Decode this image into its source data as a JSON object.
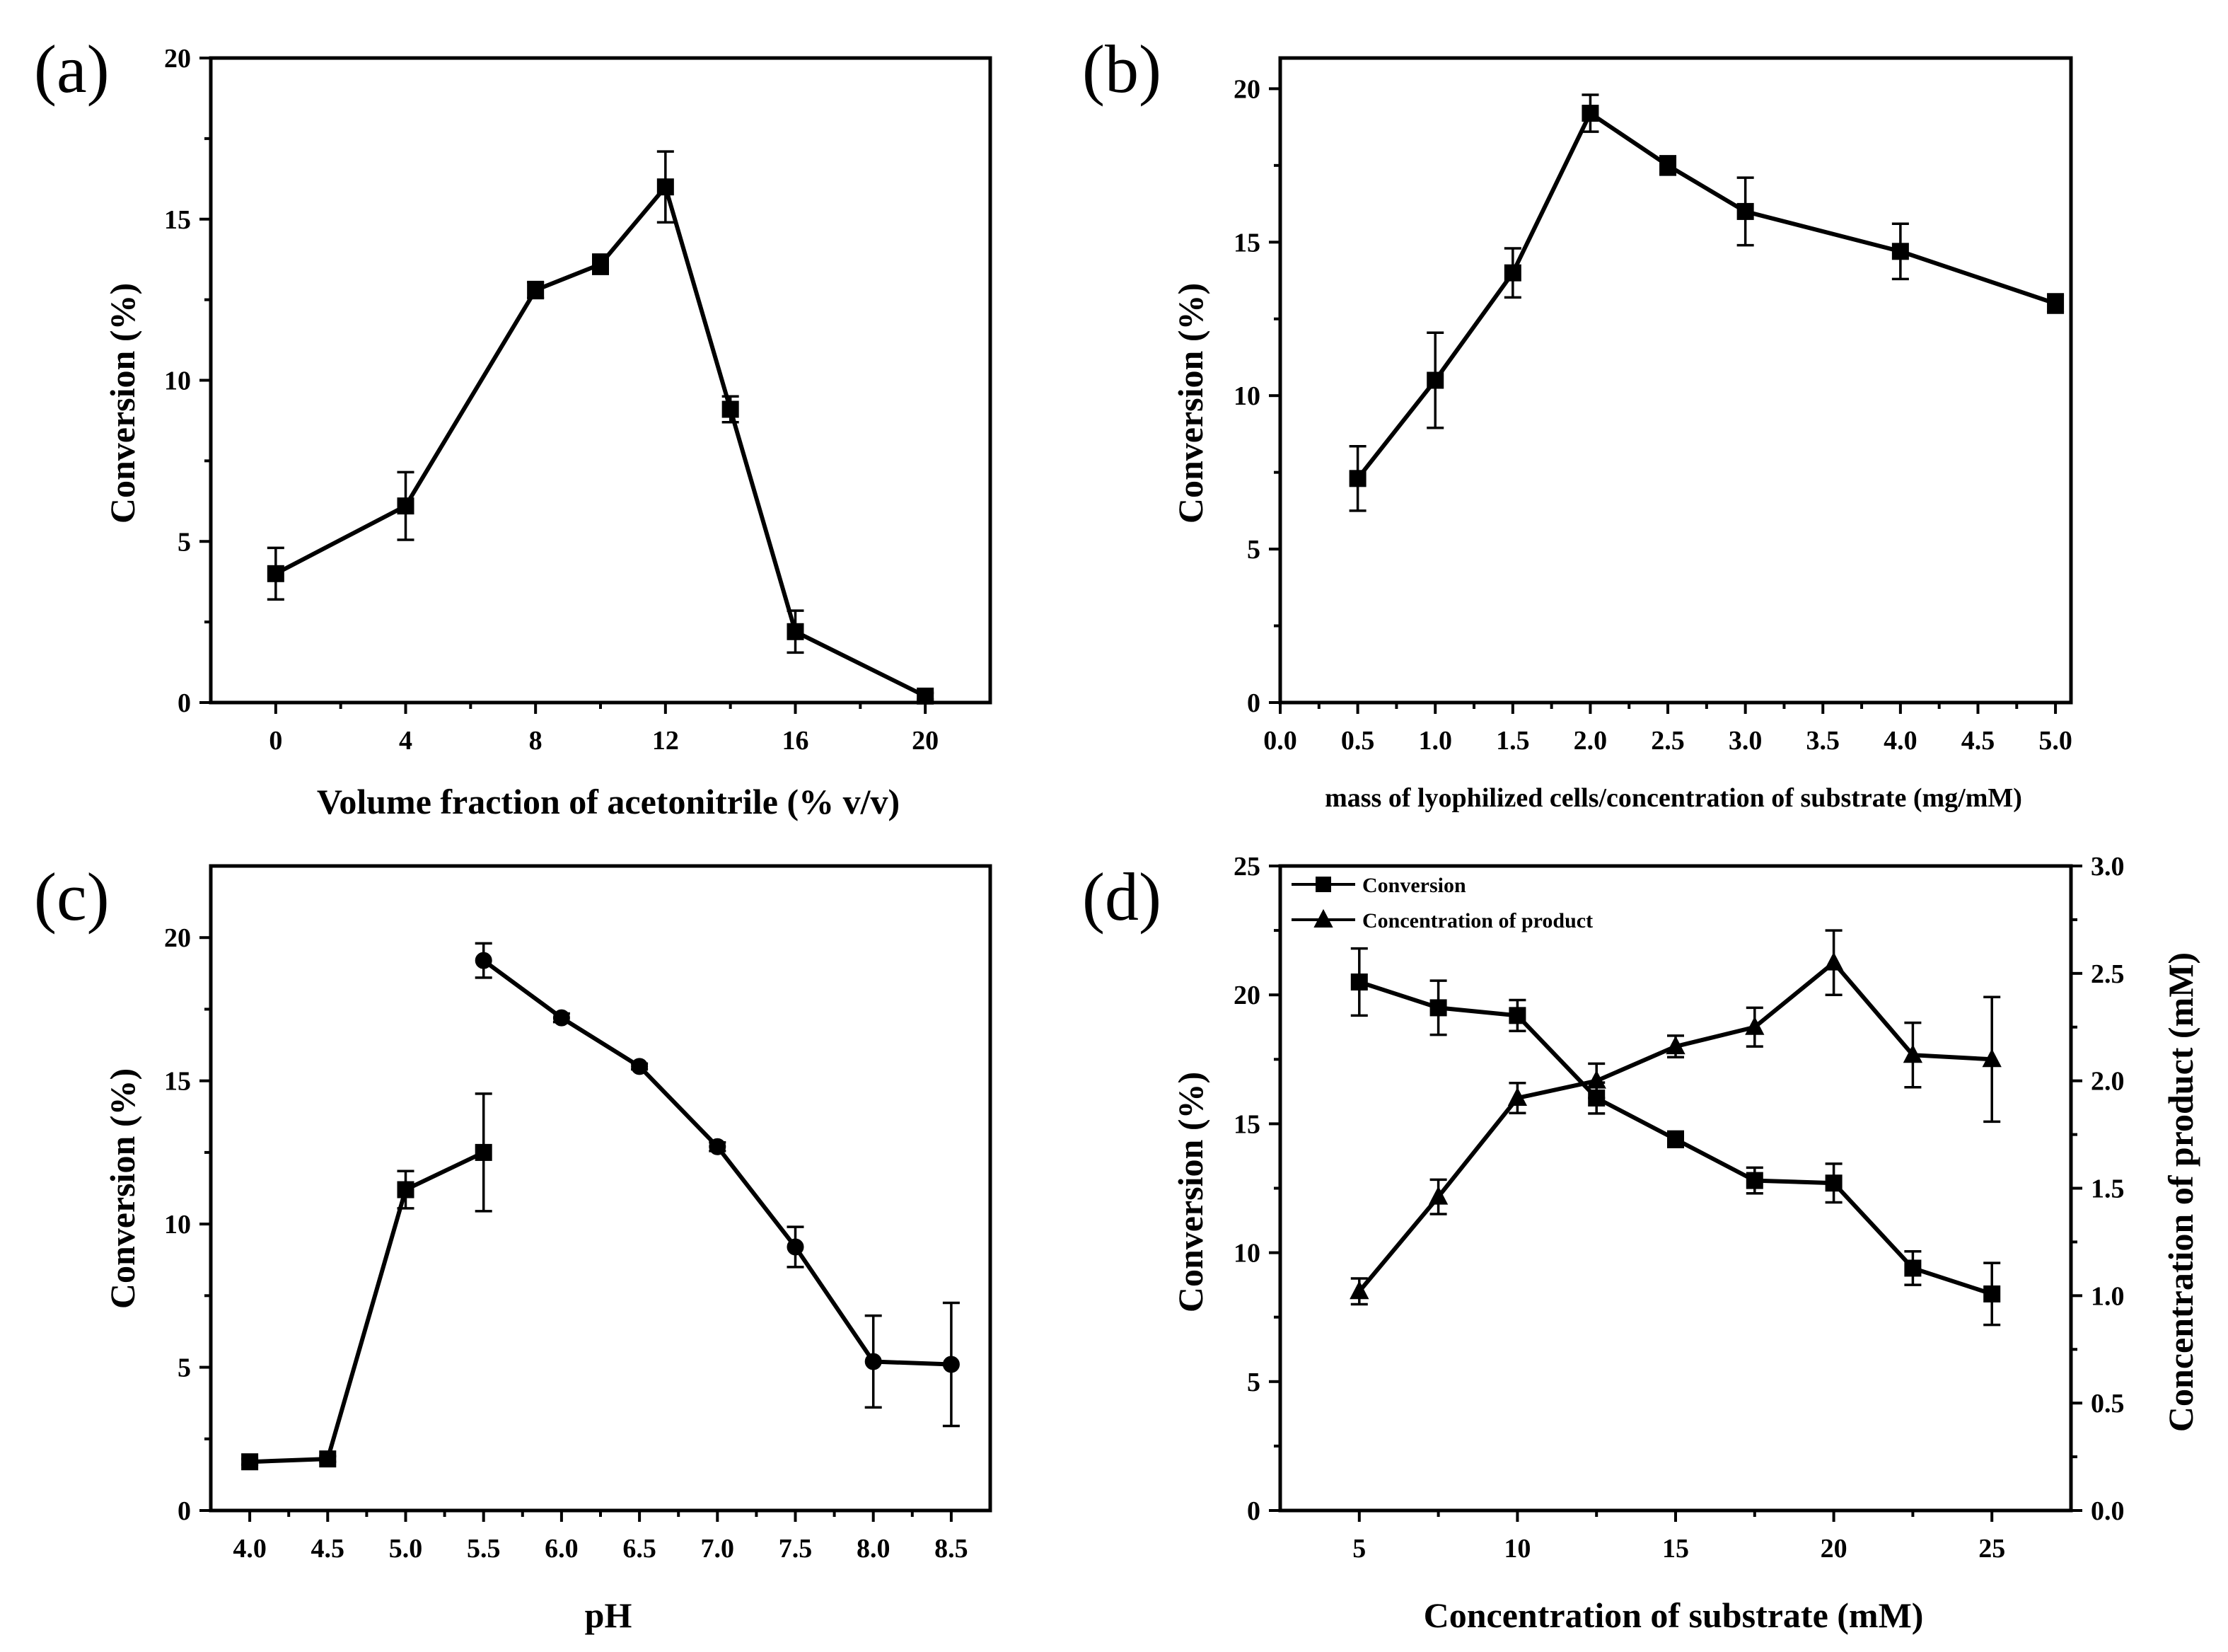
{
  "chart_data": [
    {
      "type": "line",
      "panel_label": "(a)",
      "xlabel": "Volume fraction of acetonitrile (% v/v)",
      "ylabel": "Conversion (%)",
      "xlim": [
        -2,
        22
      ],
      "ylim": [
        0,
        20
      ],
      "x_ticks": [
        0,
        4,
        8,
        12,
        16,
        20
      ],
      "x_tick_labels": [
        "0",
        "4",
        "8",
        "12",
        "16",
        "20"
      ],
      "y_ticks": [
        0,
        5,
        10,
        15,
        20
      ],
      "y_tick_labels": [
        "0",
        "5",
        "10",
        "15",
        "20"
      ],
      "series": [
        {
          "name": "Conversion",
          "marker": "square",
          "axis": "left",
          "x": [
            0,
            4,
            8,
            10,
            12,
            14,
            16,
            20
          ],
          "values": [
            4.0,
            6.1,
            12.8,
            13.6,
            16.0,
            9.1,
            2.2,
            0.2
          ],
          "errors": [
            0.8,
            1.05,
            0.25,
            0.3,
            1.1,
            0.4,
            0.65,
            0.1
          ]
        }
      ]
    },
    {
      "type": "line",
      "panel_label": "(b)",
      "xlabel": "mass of lyophilized cells/concentration of substrate (mg/mM)",
      "ylabel": "Conversion (%)",
      "xlim": [
        0,
        5.1
      ],
      "ylim": [
        0,
        21
      ],
      "x_ticks": [
        0,
        0.5,
        1,
        1.5,
        2,
        2.5,
        3,
        3.5,
        4,
        4.5,
        5
      ],
      "x_tick_labels": [
        "0.0",
        "0.5",
        "1.0",
        "1.5",
        "2.0",
        "2.5",
        "3.0",
        "3.5",
        "4.0",
        "4.5",
        "5.0"
      ],
      "y_ticks": [
        0,
        5,
        10,
        15,
        20
      ],
      "y_tick_labels": [
        "0",
        "5",
        "10",
        "15",
        "20"
      ],
      "series": [
        {
          "name": "Conversion",
          "marker": "square",
          "axis": "left",
          "x": [
            0.5,
            1.0,
            1.5,
            2.0,
            2.5,
            3.0,
            4.0,
            5.0
          ],
          "values": [
            7.3,
            10.5,
            14.0,
            19.2,
            17.5,
            16.0,
            14.7,
            13.0
          ],
          "errors": [
            1.05,
            1.55,
            0.8,
            0.6,
            0.3,
            1.1,
            0.9,
            0.3
          ]
        }
      ]
    },
    {
      "type": "line",
      "panel_label": "(c)",
      "xlabel": "pH",
      "ylabel": "Conversion (%)",
      "xlim": [
        3.75,
        8.75
      ],
      "ylim": [
        0,
        22.5
      ],
      "x_ticks": [
        4.0,
        4.5,
        5.0,
        5.5,
        6.0,
        6.5,
        7.0,
        7.5,
        8.0,
        8.5
      ],
      "x_tick_labels": [
        "4.0",
        "4.5",
        "5.0",
        "5.5",
        "6.0",
        "6.5",
        "7.0",
        "7.5",
        "8.0",
        "8.5"
      ],
      "y_ticks": [
        0,
        5,
        10,
        15,
        20
      ],
      "y_tick_labels": [
        "0",
        "5",
        "10",
        "15",
        "20"
      ],
      "series": [
        {
          "name": "Conversion (squares)",
          "marker": "square",
          "axis": "left",
          "x": [
            4.0,
            4.5,
            5.0,
            5.5
          ],
          "values": [
            1.7,
            1.8,
            11.2,
            12.5
          ],
          "errors": [
            0.1,
            0.1,
            0.65,
            2.05
          ]
        },
        {
          "name": "Conversion (circles)",
          "marker": "circle",
          "axis": "left",
          "x": [
            5.5,
            6.0,
            6.5,
            7.0,
            7.5,
            8.0,
            8.5
          ],
          "values": [
            19.2,
            17.2,
            15.5,
            12.7,
            9.2,
            5.2,
            5.1
          ],
          "errors": [
            0.6,
            0.15,
            0.1,
            0.15,
            0.7,
            1.6,
            2.15
          ]
        }
      ]
    },
    {
      "type": "line",
      "panel_label": "(d)",
      "xlabel": "Concentration of substrate (mM)",
      "ylabel": "Conversion (%)",
      "y2label": "Concentration of product (mM)",
      "xlim": [
        2.5,
        27.5
      ],
      "ylim": [
        0,
        25
      ],
      "y2lim": [
        0,
        3.0
      ],
      "x_ticks": [
        5,
        10,
        15,
        20,
        25
      ],
      "x_tick_labels": [
        "5",
        "10",
        "15",
        "20",
        "25"
      ],
      "y_ticks": [
        0,
        5,
        10,
        15,
        20,
        25
      ],
      "y_tick_labels": [
        "0",
        "5",
        "10",
        "15",
        "20",
        "25"
      ],
      "y2_ticks": [
        0,
        0.5,
        1.0,
        1.5,
        2.0,
        2.5,
        3.0
      ],
      "y2_tick_labels": [
        "0.0",
        "0.5",
        "1.0",
        "1.5",
        "2.0",
        "2.5",
        "3.0"
      ],
      "legend_position": "top-left",
      "series": [
        {
          "name": "Conversion",
          "marker": "square",
          "axis": "left",
          "x": [
            5,
            7.5,
            10,
            12.5,
            15,
            17.5,
            20,
            22.5,
            25
          ],
          "values": [
            20.5,
            19.5,
            19.2,
            16.0,
            14.4,
            12.8,
            12.7,
            9.4,
            8.4
          ],
          "errors": [
            1.3,
            1.05,
            0.6,
            0.6,
            0.3,
            0.5,
            0.75,
            0.65,
            1.2
          ]
        },
        {
          "name": "Concentration of product",
          "marker": "triangle",
          "axis": "right",
          "x": [
            5,
            7.5,
            10,
            12.5,
            15,
            17.5,
            20,
            22.5,
            25
          ],
          "values": [
            1.02,
            1.46,
            1.92,
            2.0,
            2.16,
            2.25,
            2.55,
            2.12,
            2.1
          ],
          "errors": [
            0.06,
            0.08,
            0.07,
            0.08,
            0.05,
            0.09,
            0.15,
            0.15,
            0.29
          ]
        }
      ]
    }
  ]
}
